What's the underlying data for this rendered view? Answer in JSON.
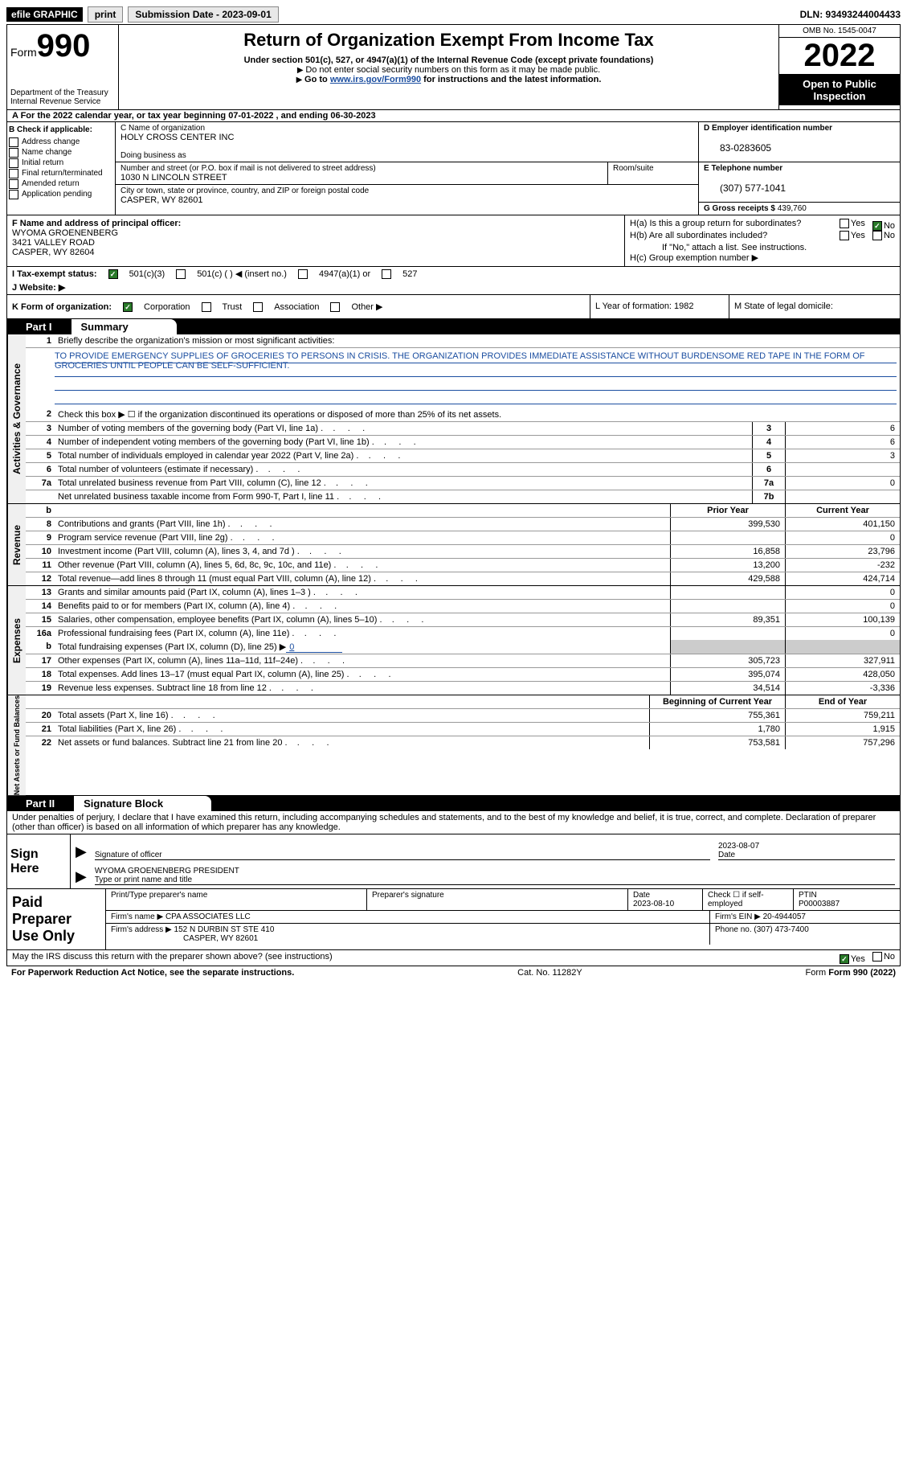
{
  "top_bar": {
    "efile": "efile GRAPHIC",
    "print": "print",
    "submission_label": "Submission Date - 2023-09-01",
    "dln": "DLN: 93493244004433"
  },
  "header": {
    "form_label": "Form",
    "form_num": "990",
    "title": "Return of Organization Exempt From Income Tax",
    "subtitle": "Under section 501(c), 527, or 4947(a)(1) of the Internal Revenue Code (except private foundations)",
    "note1": "Do not enter social security numbers on this form as it may be made public.",
    "note2_pre": "Go to ",
    "note2_link": "www.irs.gov/Form990",
    "note2_post": " for instructions and the latest information.",
    "dept": "Department of the Treasury",
    "irs": "Internal Revenue Service",
    "omb": "OMB No. 1545-0047",
    "year": "2022",
    "open": "Open to Public Inspection"
  },
  "row_a": {
    "text": "A  For the 2022 calendar year, or tax year beginning 07-01-2022    , and ending 06-30-2023"
  },
  "section_b": {
    "hdr": "B Check if applicable:",
    "opts": [
      "Address change",
      "Name change",
      "Initial return",
      "Final return/terminated",
      "Amended return",
      "Application pending"
    ]
  },
  "section_c": {
    "name_label": "C Name of organization",
    "name": "HOLY CROSS CENTER INC",
    "dba_label": "Doing business as",
    "addr_label": "Number and street (or P.O. box if mail is not delivered to street address)",
    "addr": "1030 N LINCOLN STREET",
    "room_label": "Room/suite",
    "city_label": "City or town, state or province, country, and ZIP or foreign postal code",
    "city": "CASPER, WY  82601"
  },
  "section_d": {
    "ein_label": "D Employer identification number",
    "ein": "83-0283605",
    "phone_label": "E Telephone number",
    "phone": "(307) 577-1041",
    "gross_label": "G Gross receipts $",
    "gross": "439,760"
  },
  "section_f": {
    "label": "F Name and address of principal officer:",
    "name": "WYOMA GROENENBERG",
    "addr1": "3421 VALLEY ROAD",
    "addr2": "CASPER, WY  82604"
  },
  "section_h": {
    "ha": "H(a)  Is this a group return for subordinates?",
    "hb": "H(b)  Are all subordinates included?",
    "hb_note": "If \"No,\" attach a list. See instructions.",
    "hc": "H(c)  Group exemption number ▶",
    "yes": "Yes",
    "no": "No"
  },
  "row_i": {
    "label": "I  Tax-exempt status:",
    "o1": "501(c)(3)",
    "o2": "501(c) (  ) ◀ (insert no.)",
    "o3": "4947(a)(1) or",
    "o4": "527"
  },
  "row_j": {
    "label": "J  Website: ▶"
  },
  "row_k": {
    "left": "K Form of organization:",
    "o1": "Corporation",
    "o2": "Trust",
    "o3": "Association",
    "o4": "Other ▶",
    "mid": "L Year of formation: 1982",
    "right": "M State of legal domicile:"
  },
  "part1": {
    "num": "Part I",
    "title": "Summary"
  },
  "summary": {
    "tabs": [
      "Activities & Governance",
      "Revenue",
      "Expenses",
      "Net Assets or Fund Balances"
    ],
    "q1": "Briefly describe the organization's mission or most significant activities:",
    "mission": "TO PROVIDE EMERGENCY SUPPLIES OF GROCERIES TO PERSONS IN CRISIS. THE ORGANIZATION PROVIDES IMMEDIATE ASSISTANCE WITHOUT BURDENSOME RED TAPE IN THE FORM OF GROCERIES UNTIL PEOPLE CAN BE SELF-SUFFICIENT.",
    "q2": "Check this box ▶ ☐  if the organization discontinued its operations or disposed of more than 25% of its net assets.",
    "rows_ag": [
      {
        "n": "3",
        "d": "Number of voting members of the governing body (Part VI, line 1a)",
        "box": "3",
        "v": "6"
      },
      {
        "n": "4",
        "d": "Number of independent voting members of the governing body (Part VI, line 1b)",
        "box": "4",
        "v": "6"
      },
      {
        "n": "5",
        "d": "Total number of individuals employed in calendar year 2022 (Part V, line 2a)",
        "box": "5",
        "v": "3"
      },
      {
        "n": "6",
        "d": "Total number of volunteers (estimate if necessary)",
        "box": "6",
        "v": ""
      },
      {
        "n": "7a",
        "d": "Total unrelated business revenue from Part VIII, column (C), line 12",
        "box": "7a",
        "v": "0"
      },
      {
        "n": "",
        "d": "Net unrelated business taxable income from Form 990-T, Part I, line 11",
        "box": "7b",
        "v": ""
      }
    ],
    "col_hdrs": {
      "b": "b",
      "prior": "Prior Year",
      "curr": "Current Year",
      "bcy": "Beginning of Current Year",
      "eoy": "End of Year"
    },
    "rows_rev": [
      {
        "n": "8",
        "d": "Contributions and grants (Part VIII, line 1h)",
        "p": "399,530",
        "c": "401,150"
      },
      {
        "n": "9",
        "d": "Program service revenue (Part VIII, line 2g)",
        "p": "",
        "c": "0"
      },
      {
        "n": "10",
        "d": "Investment income (Part VIII, column (A), lines 3, 4, and 7d )",
        "p": "16,858",
        "c": "23,796"
      },
      {
        "n": "11",
        "d": "Other revenue (Part VIII, column (A), lines 5, 6d, 8c, 9c, 10c, and 11e)",
        "p": "13,200",
        "c": "-232"
      },
      {
        "n": "12",
        "d": "Total revenue—add lines 8 through 11 (must equal Part VIII, column (A), line 12)",
        "p": "429,588",
        "c": "424,714"
      }
    ],
    "rows_exp": [
      {
        "n": "13",
        "d": "Grants and similar amounts paid (Part IX, column (A), lines 1–3 )",
        "p": "",
        "c": "0"
      },
      {
        "n": "14",
        "d": "Benefits paid to or for members (Part IX, column (A), line 4)",
        "p": "",
        "c": "0"
      },
      {
        "n": "15",
        "d": "Salaries, other compensation, employee benefits (Part IX, column (A), lines 5–10)",
        "p": "89,351",
        "c": "100,139"
      },
      {
        "n": "16a",
        "d": "Professional fundraising fees (Part IX, column (A), line 11e)",
        "p": "",
        "c": "0"
      }
    ],
    "row_16b": {
      "n": "b",
      "d": "Total fundraising expenses (Part IX, column (D), line 25) ▶",
      "v": "0"
    },
    "rows_exp2": [
      {
        "n": "17",
        "d": "Other expenses (Part IX, column (A), lines 11a–11d, 11f–24e)",
        "p": "305,723",
        "c": "327,911"
      },
      {
        "n": "18",
        "d": "Total expenses. Add lines 13–17 (must equal Part IX, column (A), line 25)",
        "p": "395,074",
        "c": "428,050"
      },
      {
        "n": "19",
        "d": "Revenue less expenses. Subtract line 18 from line 12",
        "p": "34,514",
        "c": "-3,336"
      }
    ],
    "rows_na": [
      {
        "n": "20",
        "d": "Total assets (Part X, line 16)",
        "p": "755,361",
        "c": "759,211"
      },
      {
        "n": "21",
        "d": "Total liabilities (Part X, line 26)",
        "p": "1,780",
        "c": "1,915"
      },
      {
        "n": "22",
        "d": "Net assets or fund balances. Subtract line 21 from line 20",
        "p": "753,581",
        "c": "757,296"
      }
    ]
  },
  "part2": {
    "num": "Part II",
    "title": "Signature Block"
  },
  "sig": {
    "intro": "Under penalties of perjury, I declare that I have examined this return, including accompanying schedules and statements, and to the best of my knowledge and belief, it is true, correct, and complete. Declaration of preparer (other than officer) is based on all information of which preparer has any knowledge.",
    "sign_here": "Sign Here",
    "date": "2023-08-07",
    "sig_label": "Signature of officer",
    "date_label": "Date",
    "name": "WYOMA GROENENBERG  PRESIDENT",
    "name_label": "Type or print name and title"
  },
  "prep": {
    "label": "Paid Preparer Use Only",
    "h1": "Print/Type preparer's name",
    "h2": "Preparer's signature",
    "h3": "Date",
    "h3v": "2023-08-10",
    "h4": "Check ☐ if self-employed",
    "h5": "PTIN",
    "h5v": "P00003887",
    "firm_label": "Firm's name    ▶",
    "firm": "CPA ASSOCIATES LLC",
    "ein_label": "Firm's EIN ▶",
    "ein": "20-4944057",
    "addr_label": "Firm's address ▶",
    "addr": "152 N DURBIN ST STE 410",
    "addr2": "CASPER, WY  82601",
    "phone_label": "Phone no.",
    "phone": "(307) 473-7400"
  },
  "bottom": {
    "q": "May the IRS discuss this return with the preparer shown above? (see instructions)",
    "yes": "Yes",
    "no": "No"
  },
  "footer": {
    "left": "For Paperwork Reduction Act Notice, see the separate instructions.",
    "mid": "Cat. No. 11282Y",
    "right": "Form 990 (2022)"
  }
}
